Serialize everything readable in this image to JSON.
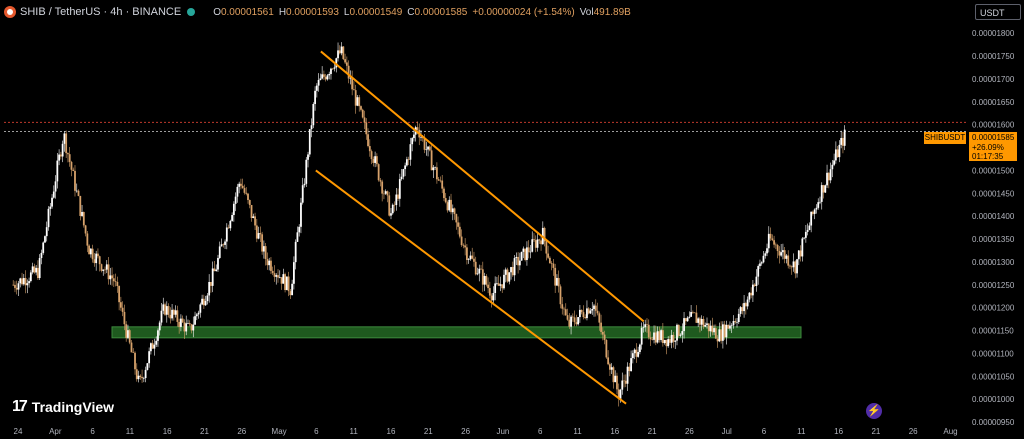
{
  "header": {
    "pair": "SHIB / TetherUS · 4h · BINANCE",
    "open_label": "O",
    "open": "0.00001561",
    "high_label": "H",
    "high": "0.00001593",
    "low_label": "L",
    "low": "0.00001549",
    "close_label": "C",
    "close": "0.00001585",
    "change": "+0.00000024 (+1.54%)",
    "vol_label": "Vol",
    "vol": "491.89B"
  },
  "currency_button": "USDT",
  "last_price": {
    "symbol": "SHIBUSDT",
    "price": "0.00001585",
    "change_pct": "+26.09%",
    "countdown": "01:17:35"
  },
  "brand": "TradingView",
  "colors": {
    "background": "#000000",
    "candle": "#d7a26b",
    "candle_alt": "#ffffff",
    "channel": "#ff9800",
    "support_zone": "#1f5a1f"
  },
  "chart_data": {
    "type": "candlestick",
    "timeframe": "4h",
    "y_ticks": [
      "0.00001800",
      "0.00001750",
      "0.00001700",
      "0.00001650",
      "0.00001600",
      "0.00001550",
      "0.00001500",
      "0.00001450",
      "0.00001400",
      "0.00001350",
      "0.00001300",
      "0.00001250",
      "0.00001200",
      "0.00001150",
      "0.00001100",
      "0.00001050",
      "0.00001000",
      "0.00000950"
    ],
    "x_ticks": [
      "24",
      "Apr",
      "6",
      "11",
      "16",
      "21",
      "26",
      "May",
      "6",
      "11",
      "16",
      "21",
      "26",
      "Jun",
      "6",
      "11",
      "16",
      "21",
      "26",
      "Jul",
      "6",
      "11",
      "16",
      "21",
      "26",
      "Aug"
    ],
    "ylim": [
      9.5e-06,
      1.82e-05
    ],
    "price_path": [
      {
        "x": 0,
        "y": 1.25e-05
      },
      {
        "x": 1,
        "y": 1.28e-05
      },
      {
        "x": 2,
        "y": 1.58e-05
      },
      {
        "x": 3,
        "y": 1.33e-05
      },
      {
        "x": 4,
        "y": 1.26e-05
      },
      {
        "x": 5,
        "y": 1.03e-05
      },
      {
        "x": 6,
        "y": 1.2e-05
      },
      {
        "x": 7,
        "y": 1.15e-05
      },
      {
        "x": 8,
        "y": 1.28e-05
      },
      {
        "x": 9,
        "y": 1.48e-05
      },
      {
        "x": 10,
        "y": 1.31e-05
      },
      {
        "x": 11,
        "y": 1.24e-05
      },
      {
        "x": 12,
        "y": 1.68e-05
      },
      {
        "x": 13,
        "y": 1.76e-05
      },
      {
        "x": 14,
        "y": 1.58e-05
      },
      {
        "x": 15,
        "y": 1.4e-05
      },
      {
        "x": 16,
        "y": 1.6e-05
      },
      {
        "x": 17,
        "y": 1.46e-05
      },
      {
        "x": 18,
        "y": 1.32e-05
      },
      {
        "x": 19,
        "y": 1.23e-05
      },
      {
        "x": 20,
        "y": 1.3e-05
      },
      {
        "x": 21,
        "y": 1.36e-05
      },
      {
        "x": 22,
        "y": 1.16e-05
      },
      {
        "x": 23,
        "y": 1.21e-05
      },
      {
        "x": 24,
        "y": 1.01e-05
      },
      {
        "x": 25,
        "y": 1.15e-05
      },
      {
        "x": 26,
        "y": 1.13e-05
      },
      {
        "x": 27,
        "y": 1.18e-05
      },
      {
        "x": 28,
        "y": 1.14e-05
      },
      {
        "x": 29,
        "y": 1.2e-05
      },
      {
        "x": 30,
        "y": 1.35e-05
      },
      {
        "x": 31,
        "y": 1.29e-05
      },
      {
        "x": 32,
        "y": 1.45e-05
      },
      {
        "x": 33,
        "y": 1.58e-05
      }
    ],
    "x_slots": 34,
    "channel_upper": {
      "from": {
        "x": 12.2,
        "y": 1.76e-05
      },
      "to": {
        "x": 25.0,
        "y": 1.17e-05
      }
    },
    "channel_lower": {
      "from": {
        "x": 12.0,
        "y": 1.5e-05
      },
      "to": {
        "x": 24.3,
        "y": 9.9e-06
      }
    },
    "support_zone": {
      "y_low": 1.134e-05,
      "y_high": 1.158e-05
    },
    "last_close_line": 1.585e-05,
    "ref_line": 1.605e-05
  }
}
